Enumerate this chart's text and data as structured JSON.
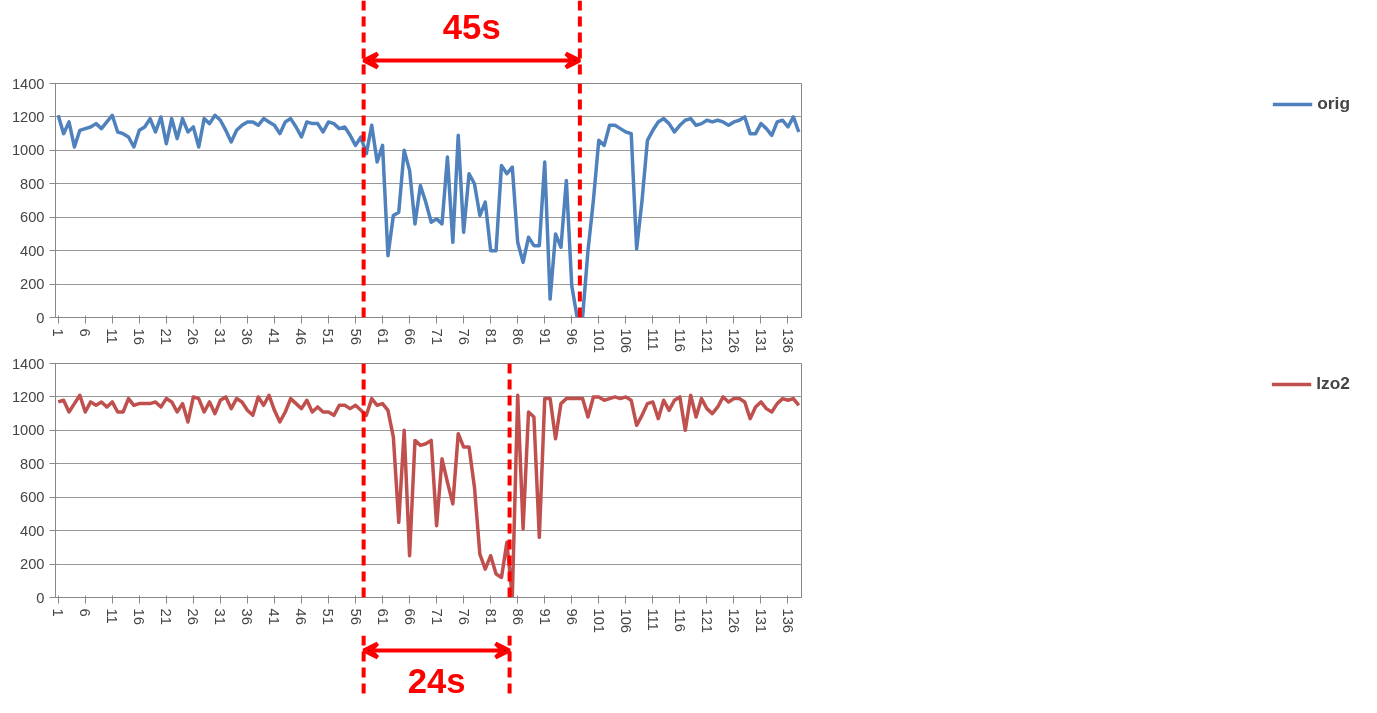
{
  "chart_data": [
    {
      "type": "line",
      "xlim": [
        0.5,
        138.5
      ],
      "xticks": [
        1,
        6,
        11,
        16,
        21,
        26,
        31,
        36,
        41,
        46,
        51,
        56,
        61,
        66,
        71,
        76,
        81,
        86,
        91,
        96,
        101,
        106,
        111,
        116,
        121,
        126,
        131,
        136
      ],
      "ylim": [
        0,
        1400
      ],
      "yticks": [
        0,
        200,
        400,
        600,
        800,
        1000,
        1200,
        1400
      ],
      "grid": "y",
      "legend": "right",
      "x": [
        1,
        2,
        3,
        4,
        5,
        6,
        7,
        8,
        9,
        10,
        11,
        12,
        13,
        14,
        15,
        16,
        17,
        18,
        19,
        20,
        21,
        22,
        23,
        24,
        25,
        26,
        27,
        28,
        29,
        30,
        31,
        32,
        33,
        34,
        35,
        36,
        37,
        38,
        39,
        40,
        41,
        42,
        43,
        44,
        45,
        46,
        47,
        48,
        49,
        50,
        51,
        52,
        53,
        54,
        55,
        56,
        57,
        58,
        59,
        60,
        61,
        62,
        63,
        64,
        65,
        66,
        67,
        68,
        69,
        70,
        71,
        72,
        73,
        74,
        75,
        76,
        77,
        78,
        79,
        80,
        81,
        82,
        83,
        84,
        85,
        86,
        87,
        88,
        89,
        90,
        91,
        92,
        93,
        94,
        95,
        96,
        97,
        98,
        99,
        100,
        101,
        102,
        103,
        104,
        105,
        106,
        107,
        108,
        109,
        110,
        111,
        112,
        113,
        114,
        115,
        116,
        117,
        118,
        119,
        120,
        121,
        122,
        123,
        124,
        125,
        126,
        127,
        128,
        129,
        130,
        131,
        132,
        133,
        134,
        135,
        136,
        137,
        138
      ],
      "series": [
        {
          "name": "orig",
          "color": "#4f81bd",
          "values": [
            1210,
            1100,
            1170,
            1020,
            1120,
            1130,
            1140,
            1160,
            1130,
            1170,
            1210,
            1110,
            1100,
            1080,
            1020,
            1120,
            1140,
            1190,
            1110,
            1200,
            1040,
            1190,
            1070,
            1190,
            1110,
            1140,
            1020,
            1190,
            1160,
            1210,
            1180,
            1120,
            1050,
            1120,
            1150,
            1170,
            1170,
            1150,
            1190,
            1170,
            1150,
            1100,
            1170,
            1190,
            1140,
            1080,
            1170,
            1160,
            1160,
            1110,
            1170,
            1160,
            1130,
            1140,
            1090,
            1030,
            1080,
            980,
            1150,
            930,
            1030,
            370,
            610,
            630,
            1000,
            880,
            560,
            790,
            690,
            570,
            590,
            560,
            960,
            450,
            1090,
            510,
            860,
            800,
            610,
            690,
            400,
            400,
            910,
            860,
            900,
            450,
            330,
            480,
            430,
            430,
            930,
            110,
            500,
            420,
            820,
            190,
            0,
            0,
            400,
            700,
            1060,
            1030,
            1150,
            1150,
            1130,
            1110,
            1100,
            410,
            700,
            1060,
            1120,
            1170,
            1190,
            1160,
            1110,
            1150,
            1180,
            1190,
            1150,
            1160,
            1180,
            1170,
            1180,
            1170,
            1150,
            1170,
            1180,
            1200,
            1100,
            1100,
            1160,
            1130,
            1090,
            1170,
            1180,
            1140,
            1200,
            1110
          ]
        }
      ],
      "ref_lines": [
        {
          "axis": "x",
          "value": 57.5,
          "color": "#ff0000",
          "line_style": "dashed"
        },
        {
          "axis": "x",
          "value": 97.5,
          "color": "#ff0000",
          "line_style": "dashed"
        }
      ],
      "annotations": [
        "45s"
      ]
    },
    {
      "type": "line",
      "xlim": [
        0.5,
        138.5
      ],
      "xticks": [
        1,
        6,
        11,
        16,
        21,
        26,
        31,
        36,
        41,
        46,
        51,
        56,
        61,
        66,
        71,
        76,
        81,
        86,
        91,
        96,
        101,
        106,
        111,
        116,
        121,
        126,
        131,
        136
      ],
      "ylim": [
        0,
        1400
      ],
      "yticks": [
        0,
        200,
        400,
        600,
        800,
        1000,
        1200,
        1400
      ],
      "grid": "y",
      "legend": "right",
      "x": [
        1,
        2,
        3,
        4,
        5,
        6,
        7,
        8,
        9,
        10,
        11,
        12,
        13,
        14,
        15,
        16,
        17,
        18,
        19,
        20,
        21,
        22,
        23,
        24,
        25,
        26,
        27,
        28,
        29,
        30,
        31,
        32,
        33,
        34,
        35,
        36,
        37,
        38,
        39,
        40,
        41,
        42,
        43,
        44,
        45,
        46,
        47,
        48,
        49,
        50,
        51,
        52,
        53,
        54,
        55,
        56,
        57,
        58,
        59,
        60,
        61,
        62,
        63,
        64,
        65,
        66,
        67,
        68,
        69,
        70,
        71,
        72,
        73,
        74,
        75,
        76,
        77,
        78,
        79,
        80,
        81,
        82,
        83,
        84,
        85,
        86,
        87,
        88,
        89,
        90,
        91,
        92,
        93,
        94,
        95,
        96,
        97,
        98,
        99,
        100,
        101,
        102,
        103,
        104,
        105,
        106,
        107,
        108,
        109,
        110,
        111,
        112,
        113,
        114,
        115,
        116,
        117,
        118,
        119,
        120,
        121,
        122,
        123,
        124,
        125,
        126,
        127,
        128,
        129,
        130,
        131,
        132,
        133,
        134,
        135,
        136,
        137,
        138
      ],
      "series": [
        {
          "name": "lzo2",
          "color": "#c0504d",
          "values": [
            1170,
            1180,
            1110,
            1160,
            1210,
            1110,
            1170,
            1150,
            1170,
            1140,
            1170,
            1110,
            1110,
            1190,
            1150,
            1160,
            1160,
            1160,
            1170,
            1140,
            1190,
            1170,
            1110,
            1160,
            1050,
            1200,
            1190,
            1110,
            1170,
            1100,
            1180,
            1200,
            1130,
            1190,
            1170,
            1120,
            1090,
            1200,
            1150,
            1210,
            1120,
            1050,
            1110,
            1190,
            1160,
            1130,
            1180,
            1110,
            1140,
            1110,
            1110,
            1090,
            1150,
            1150,
            1130,
            1150,
            1120,
            1090,
            1190,
            1150,
            1160,
            1120,
            960,
            450,
            1000,
            250,
            940,
            910,
            920,
            940,
            430,
            830,
            690,
            560,
            980,
            900,
            900,
            660,
            260,
            170,
            250,
            140,
            120,
            330,
            0,
            1210,
            410,
            1110,
            1080,
            360,
            1190,
            1190,
            950,
            1160,
            1190,
            1190,
            1190,
            1190,
            1080,
            1200,
            1200,
            1180,
            1190,
            1200,
            1190,
            1200,
            1180,
            1030,
            1090,
            1160,
            1170,
            1070,
            1180,
            1120,
            1180,
            1200,
            1000,
            1210,
            1080,
            1190,
            1130,
            1100,
            1140,
            1200,
            1170,
            1190,
            1190,
            1170,
            1070,
            1140,
            1170,
            1130,
            1110,
            1160,
            1190,
            1180,
            1190,
            1150
          ]
        }
      ],
      "ref_lines": [
        {
          "axis": "x",
          "value": 57.5,
          "color": "#ff0000",
          "line_style": "dashed"
        },
        {
          "axis": "x",
          "value": 84.5,
          "color": "#ff0000",
          "line_style": "dashed"
        }
      ],
      "annotations": [
        "24s"
      ]
    }
  ]
}
